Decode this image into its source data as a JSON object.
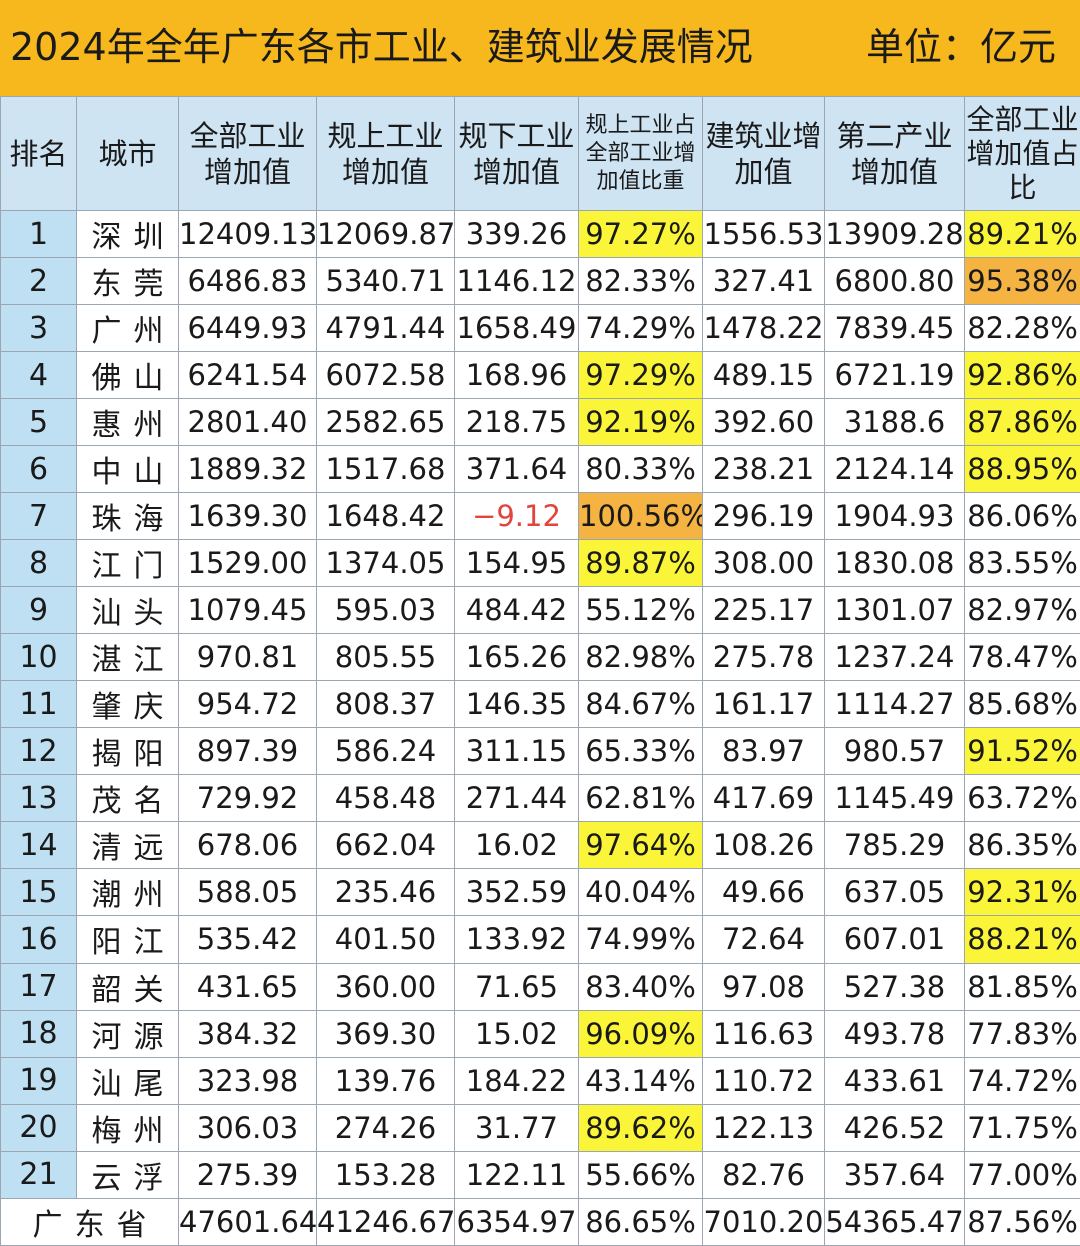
{
  "title": "2024年全年广东各市工业、建筑业发展情况",
  "unit": "单位：亿元",
  "chart_data": {
    "type": "table",
    "columns": [
      "排名",
      "城市",
      "全部工业增加值",
      "规上工业增加值",
      "规下工业增加值",
      "规上工业占全部工业增加值比重",
      "建筑业增加值",
      "第二产业增加值",
      "全部工业增加值占比"
    ],
    "rows": [
      {
        "rank": "1",
        "city": "深圳",
        "all_ind": "12409.13",
        "above": "12069.87",
        "below": "339.26",
        "above_share": "97.27%",
        "construction": "1556.53",
        "secondary": "13909.28",
        "ind_share": "89.21%",
        "hl_above": "yellow",
        "hl_ind": "yellow"
      },
      {
        "rank": "2",
        "city": "东莞",
        "all_ind": "6486.83",
        "above": "5340.71",
        "below": "1146.12",
        "above_share": "82.33%",
        "construction": "327.41",
        "secondary": "6800.80",
        "ind_share": "95.38%",
        "hl_above": "",
        "hl_ind": "orange"
      },
      {
        "rank": "3",
        "city": "广州",
        "all_ind": "6449.93",
        "above": "4791.44",
        "below": "1658.49",
        "above_share": "74.29%",
        "construction": "1478.22",
        "secondary": "7839.45",
        "ind_share": "82.28%",
        "hl_above": "",
        "hl_ind": ""
      },
      {
        "rank": "4",
        "city": "佛山",
        "all_ind": "6241.54",
        "above": "6072.58",
        "below": "168.96",
        "above_share": "97.29%",
        "construction": "489.15",
        "secondary": "6721.19",
        "ind_share": "92.86%",
        "hl_above": "yellow",
        "hl_ind": "yellow"
      },
      {
        "rank": "5",
        "city": "惠州",
        "all_ind": "2801.40",
        "above": "2582.65",
        "below": "218.75",
        "above_share": "92.19%",
        "construction": "392.60",
        "secondary": "3188.6",
        "ind_share": "87.86%",
        "hl_above": "yellow",
        "hl_ind": "yellow"
      },
      {
        "rank": "6",
        "city": "中山",
        "all_ind": "1889.32",
        "above": "1517.68",
        "below": "371.64",
        "above_share": "80.33%",
        "construction": "238.21",
        "secondary": "2124.14",
        "ind_share": "88.95%",
        "hl_above": "",
        "hl_ind": "yellow"
      },
      {
        "rank": "7",
        "city": "珠海",
        "all_ind": "1639.30",
        "above": "1648.42",
        "below": "-9.12",
        "above_share": "100.56%",
        "construction": "296.19",
        "secondary": "1904.93",
        "ind_share": "86.06%",
        "hl_above": "orange",
        "hl_ind": "",
        "neg_below": true
      },
      {
        "rank": "8",
        "city": "江门",
        "all_ind": "1529.00",
        "above": "1374.05",
        "below": "154.95",
        "above_share": "89.87%",
        "construction": "308.00",
        "secondary": "1830.08",
        "ind_share": "83.55%",
        "hl_above": "yellow",
        "hl_ind": ""
      },
      {
        "rank": "9",
        "city": "汕头",
        "all_ind": "1079.45",
        "above": "595.03",
        "below": "484.42",
        "above_share": "55.12%",
        "construction": "225.17",
        "secondary": "1301.07",
        "ind_share": "82.97%",
        "hl_above": "",
        "hl_ind": ""
      },
      {
        "rank": "10",
        "city": "湛江",
        "all_ind": "970.81",
        "above": "805.55",
        "below": "165.26",
        "above_share": "82.98%",
        "construction": "275.78",
        "secondary": "1237.24",
        "ind_share": "78.47%",
        "hl_above": "",
        "hl_ind": ""
      },
      {
        "rank": "11",
        "city": "肇庆",
        "all_ind": "954.72",
        "above": "808.37",
        "below": "146.35",
        "above_share": "84.67%",
        "construction": "161.17",
        "secondary": "1114.27",
        "ind_share": "85.68%",
        "hl_above": "",
        "hl_ind": ""
      },
      {
        "rank": "12",
        "city": "揭阳",
        "all_ind": "897.39",
        "above": "586.24",
        "below": "311.15",
        "above_share": "65.33%",
        "construction": "83.97",
        "secondary": "980.57",
        "ind_share": "91.52%",
        "hl_above": "",
        "hl_ind": "yellow"
      },
      {
        "rank": "13",
        "city": "茂名",
        "all_ind": "729.92",
        "above": "458.48",
        "below": "271.44",
        "above_share": "62.81%",
        "construction": "417.69",
        "secondary": "1145.49",
        "ind_share": "63.72%",
        "hl_above": "",
        "hl_ind": ""
      },
      {
        "rank": "14",
        "city": "清远",
        "all_ind": "678.06",
        "above": "662.04",
        "below": "16.02",
        "above_share": "97.64%",
        "construction": "108.26",
        "secondary": "785.29",
        "ind_share": "86.35%",
        "hl_above": "yellow",
        "hl_ind": ""
      },
      {
        "rank": "15",
        "city": "潮州",
        "all_ind": "588.05",
        "above": "235.46",
        "below": "352.59",
        "above_share": "40.04%",
        "construction": "49.66",
        "secondary": "637.05",
        "ind_share": "92.31%",
        "hl_above": "",
        "hl_ind": "yellow"
      },
      {
        "rank": "16",
        "city": "阳江",
        "all_ind": "535.42",
        "above": "401.50",
        "below": "133.92",
        "above_share": "74.99%",
        "construction": "72.64",
        "secondary": "607.01",
        "ind_share": "88.21%",
        "hl_above": "",
        "hl_ind": "yellow"
      },
      {
        "rank": "17",
        "city": "韶关",
        "all_ind": "431.65",
        "above": "360.00",
        "below": "71.65",
        "above_share": "83.40%",
        "construction": "97.08",
        "secondary": "527.38",
        "ind_share": "81.85%",
        "hl_above": "",
        "hl_ind": ""
      },
      {
        "rank": "18",
        "city": "河源",
        "all_ind": "384.32",
        "above": "369.30",
        "below": "15.02",
        "above_share": "96.09%",
        "construction": "116.63",
        "secondary": "493.78",
        "ind_share": "77.83%",
        "hl_above": "yellow",
        "hl_ind": ""
      },
      {
        "rank": "19",
        "city": "汕尾",
        "all_ind": "323.98",
        "above": "139.76",
        "below": "184.22",
        "above_share": "43.14%",
        "construction": "110.72",
        "secondary": "433.61",
        "ind_share": "74.72%",
        "hl_above": "",
        "hl_ind": ""
      },
      {
        "rank": "20",
        "city": "梅州",
        "all_ind": "306.03",
        "above": "274.26",
        "below": "31.77",
        "above_share": "89.62%",
        "construction": "122.13",
        "secondary": "426.52",
        "ind_share": "71.75%",
        "hl_above": "yellow",
        "hl_ind": ""
      },
      {
        "rank": "21",
        "city": "云浮",
        "all_ind": "275.39",
        "above": "153.28",
        "below": "122.11",
        "above_share": "55.66%",
        "construction": "82.76",
        "secondary": "357.64",
        "ind_share": "77.00%",
        "hl_above": "",
        "hl_ind": ""
      }
    ],
    "total": {
      "label": "广东省",
      "all_ind": "47601.64",
      "above": "41246.67",
      "below": "6354.97",
      "above_share": "86.65%",
      "construction": "7010.20",
      "secondary": "54365.47",
      "ind_share": "87.56%"
    }
  },
  "colors": {
    "title_bg": "#f7b81d",
    "header_bg": "#cfe4f3",
    "rank_bg": "#bfe0f2",
    "highlight_yellow": "#fbf53a",
    "highlight_orange": "#f5b342",
    "negative": "#e0463e"
  }
}
